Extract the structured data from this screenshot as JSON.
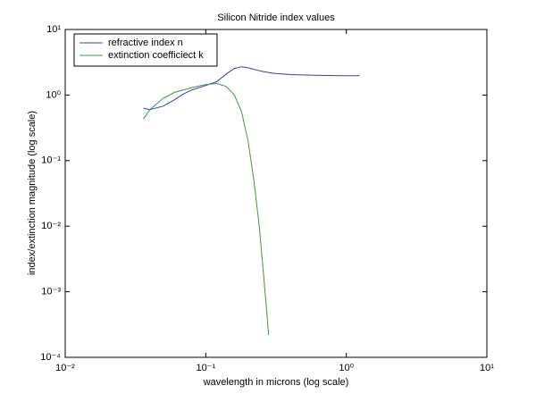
{
  "chart_data": {
    "type": "line",
    "title": "Silicon Nitride index values",
    "xlabel": "wavelength in microns (log scale)",
    "ylabel": "index/extinction magnitude (log scale)",
    "xscale": "log",
    "yscale": "log",
    "xlim": [
      0.01,
      10
    ],
    "ylim": [
      0.0001,
      10
    ],
    "xticks": [
      {
        "value": 0.01,
        "label": "10⁻²"
      },
      {
        "value": 0.1,
        "label": "10⁻¹"
      },
      {
        "value": 1,
        "label": "10⁰"
      },
      {
        "value": 10,
        "label": "10¹"
      }
    ],
    "yticks": [
      {
        "value": 0.0001,
        "label": "10⁻⁴"
      },
      {
        "value": 0.001,
        "label": "10⁻³"
      },
      {
        "value": 0.01,
        "label": "10⁻²"
      },
      {
        "value": 0.1,
        "label": "10⁻¹"
      },
      {
        "value": 1,
        "label": "10⁰"
      },
      {
        "value": 10,
        "label": "10¹"
      }
    ],
    "legend": "upper left",
    "series": [
      {
        "name": "refractive index n",
        "color": "#3a3ac0",
        "x": [
          0.036,
          0.04,
          0.05,
          0.06,
          0.07,
          0.08,
          0.1,
          0.12,
          0.14,
          0.16,
          0.18,
          0.2,
          0.25,
          0.3,
          0.4,
          0.6,
          1.0,
          1.24
        ],
        "values": [
          0.63,
          0.6,
          0.68,
          0.85,
          1.05,
          1.2,
          1.4,
          1.6,
          2.1,
          2.55,
          2.7,
          2.6,
          2.3,
          2.15,
          2.05,
          2.0,
          1.97,
          1.97
        ]
      },
      {
        "name": "extinction coefficiect k",
        "color": "#3a9a3a",
        "x": [
          0.036,
          0.04,
          0.05,
          0.06,
          0.08,
          0.1,
          0.12,
          0.14,
          0.16,
          0.18,
          0.2,
          0.22,
          0.24,
          0.26,
          0.28
        ],
        "values": [
          0.43,
          0.6,
          0.9,
          1.1,
          1.3,
          1.45,
          1.5,
          1.35,
          1.0,
          0.55,
          0.2,
          0.05,
          0.01,
          0.0015,
          0.00022
        ]
      }
    ]
  }
}
